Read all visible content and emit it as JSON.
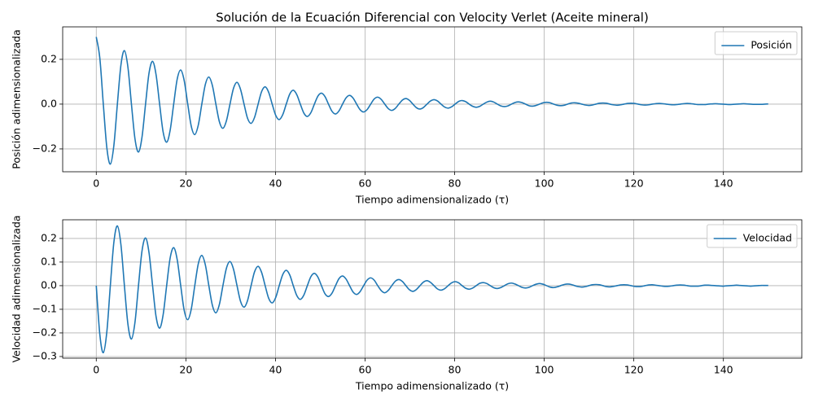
{
  "chart_data": [
    {
      "type": "line",
      "title": "Solución de la Ecuación Diferencial con Velocity Verlet (Aceite mineral)",
      "xlabel": "Tiempo adimensionalizado (τ)",
      "ylabel": "Posición adimensionalizada",
      "grid": true,
      "legend": "upper right",
      "xlim": [
        -7.5,
        157.5
      ],
      "xticks": [
        0,
        20,
        40,
        60,
        80,
        100,
        120,
        140
      ],
      "ylim": [
        -0.302,
        0.345
      ],
      "yticks": [
        {
          "value": -0.2,
          "label": "−0.2"
        },
        {
          "value": 0,
          "label": "0.0"
        },
        0.2
      ],
      "x": [
        0,
        0.79,
        1.57,
        2.36,
        3.14,
        3.93,
        4.71,
        5.5,
        6.28,
        7.07,
        7.85,
        8.64,
        9.42,
        10.21,
        11.0,
        11.78,
        12.57,
        13.35,
        14.14,
        14.92,
        15.71,
        16.49,
        17.28,
        18.06,
        18.85,
        19.63,
        20.42,
        21.21,
        21.99,
        22.78,
        23.56,
        24.35,
        25.13,
        25.92,
        26.7,
        27.49,
        28.27,
        29.06,
        29.85,
        30.63,
        31.42,
        32.2,
        32.99,
        33.77,
        34.56,
        35.34,
        36.13,
        36.91,
        37.7,
        38.48,
        39.27,
        40.06,
        40.84,
        41.63,
        42.41,
        43.2,
        43.98,
        44.77,
        45.55,
        46.34,
        47.12,
        47.91,
        48.69,
        49.48,
        50.27,
        51.05,
        51.84,
        52.62,
        53.41,
        54.19,
        54.98,
        55.76,
        56.55,
        57.33,
        58.12,
        58.9,
        59.69,
        60.48,
        61.26,
        62.05,
        62.83,
        63.62,
        64.4,
        65.19,
        65.97,
        66.76,
        67.54,
        68.33,
        69.12,
        69.9,
        70.69,
        71.47,
        72.26,
        73.04,
        73.83,
        74.61,
        75.4,
        76.18,
        76.97,
        77.75,
        78.54,
        79.33,
        80.11,
        80.9,
        81.68,
        82.47,
        83.25,
        84.04,
        84.82,
        85.61,
        86.39,
        87.18,
        87.96,
        88.75,
        89.54,
        90.32,
        91.11,
        91.89,
        92.68,
        93.46,
        94.25,
        95.03,
        95.82,
        96.6,
        97.39,
        98.17,
        98.96,
        99.75,
        100.53,
        101.32,
        102.1,
        102.89,
        103.67,
        104.46,
        105.24,
        106.03,
        106.81,
        107.6,
        108.38,
        109.17,
        109.96,
        110.74,
        111.53,
        112.31,
        113.1,
        113.88,
        114.67,
        115.45,
        116.24,
        117.02,
        117.81,
        118.6,
        119.38,
        120.17,
        120.95,
        121.74,
        122.52,
        123.31,
        124.09,
        124.88,
        125.66,
        126.45,
        127.23,
        128.02,
        128.81,
        129.59,
        130.38,
        131.16,
        131.95,
        132.73,
        133.52,
        134.3,
        135.09,
        135.87,
        136.66,
        137.44,
        138.23,
        139.02,
        139.8,
        140.59,
        141.37,
        142.16,
        142.94,
        143.73,
        144.51,
        145.3,
        146.08,
        146.87,
        147.65,
        148.44,
        149.23,
        150.01
      ],
      "series": [
        {
          "name": "Posición",
          "color": "#1f77b4",
          "values": [
            0.3,
            0.206,
            0,
            -0.195,
            -0.268,
            -0.184,
            0,
            0.174,
            0.239,
            0.164,
            0,
            -0.155,
            -0.214,
            -0.147,
            0,
            0.139,
            0.191,
            0.131,
            0,
            -0.124,
            -0.17,
            -0.117,
            0,
            0.111,
            0.152,
            0.105,
            0,
            -0.099,
            -0.136,
            -0.093,
            0,
            0.088,
            0.121,
            0.083,
            0,
            -0.079,
            -0.108,
            -0.074,
            0,
            0.07,
            0.097,
            0.066,
            0,
            -0.063,
            -0.086,
            -0.059,
            0,
            0.056,
            0.077,
            0.053,
            0,
            -0.05,
            -0.069,
            -0.047,
            0,
            0.045,
            0.062,
            0.042,
            0,
            -0.04,
            -0.055,
            -0.038,
            0,
            0.036,
            0.049,
            0.034,
            0,
            -0.032,
            -0.044,
            -0.03,
            0,
            0.028,
            0.039,
            0.027,
            0,
            -0.025,
            -0.035,
            -0.024,
            0,
            0.023,
            0.031,
            0.021,
            0,
            -0.02,
            -0.028,
            -0.019,
            0,
            0.018,
            0.025,
            0.017,
            0,
            -0.016,
            -0.022,
            -0.015,
            0,
            0.014,
            0.02,
            0.014,
            0,
            -0.013,
            -0.018,
            -0.012,
            0,
            0.012,
            0.016,
            0.011,
            0,
            -0.01,
            -0.014,
            -0.01,
            0,
            0.009,
            0.013,
            0.009,
            0,
            -0.008,
            -0.011,
            -0.008,
            0,
            0.007,
            0.01,
            0.007,
            0,
            -0.007,
            -0.009,
            -0.006,
            0,
            0.006,
            0.008,
            0.006,
            0,
            -0.005,
            -0.007,
            -0.005,
            0,
            0.005,
            0.006,
            0.004,
            0,
            -0.004,
            -0.006,
            -0.004,
            0,
            0.004,
            0.005,
            0.004,
            0,
            -0.003,
            -0.005,
            -0.003,
            0,
            0.003,
            0.004,
            0.003,
            0,
            -0.003,
            -0.004,
            -0.003,
            0,
            0.002,
            0.003,
            0.002,
            0,
            -0.002,
            -0.003,
            -0.002,
            0,
            0.002,
            0.003,
            0.002,
            0,
            -0.002,
            -0.002,
            -0.002,
            0,
            0.001,
            0.002,
            0.001,
            0,
            -0.001,
            -0.002,
            -0.001,
            0,
            0.001,
            0.002,
            0.001,
            0,
            -0.001,
            -0.001,
            -0.001,
            0,
            0.001
          ]
        }
      ]
    },
    {
      "type": "line",
      "xlabel": "Tiempo adimensionalizado (τ)",
      "ylabel": "Velocidad adimensionalizada",
      "grid": true,
      "legend": "upper right",
      "xlim": [
        -7.5,
        157.5
      ],
      "xticks": [
        0,
        20,
        40,
        60,
        80,
        100,
        120,
        140
      ],
      "ylim": [
        -0.307,
        0.279
      ],
      "yticks": [
        {
          "value": -0.3,
          "label": "−0.3"
        },
        {
          "value": -0.2,
          "label": "−0.2"
        },
        {
          "value": -0.1,
          "label": "−0.1"
        },
        {
          "value": 0,
          "label": "0.0"
        },
        0.1,
        0.2
      ],
      "x": [
        0,
        0.79,
        1.57,
        2.36,
        3.14,
        3.93,
        4.71,
        5.5,
        6.28,
        7.07,
        7.85,
        8.64,
        9.42,
        10.21,
        11.0,
        11.78,
        12.57,
        13.35,
        14.14,
        14.92,
        15.71,
        16.49,
        17.28,
        18.06,
        18.85,
        19.63,
        20.42,
        21.21,
        21.99,
        22.78,
        23.56,
        24.35,
        25.13,
        25.92,
        26.7,
        27.49,
        28.27,
        29.06,
        29.85,
        30.63,
        31.42,
        32.2,
        32.99,
        33.77,
        34.56,
        35.34,
        36.13,
        36.91,
        37.7,
        38.48,
        39.27,
        40.06,
        40.84,
        41.63,
        42.41,
        43.2,
        43.98,
        44.77,
        45.55,
        46.34,
        47.12,
        47.91,
        48.69,
        49.48,
        50.27,
        51.05,
        51.84,
        52.62,
        53.41,
        54.19,
        54.98,
        55.76,
        56.55,
        57.33,
        58.12,
        58.9,
        59.69,
        60.48,
        61.26,
        62.05,
        62.83,
        63.62,
        64.4,
        65.19,
        65.97,
        66.76,
        67.54,
        68.33,
        69.12,
        69.9,
        70.69,
        71.47,
        72.26,
        73.04,
        73.83,
        74.61,
        75.4,
        76.18,
        76.97,
        77.75,
        78.54,
        79.33,
        80.11,
        80.9,
        81.68,
        82.47,
        83.25,
        84.04,
        84.82,
        85.61,
        86.39,
        87.18,
        87.96,
        88.75,
        89.54,
        90.32,
        91.11,
        91.89,
        92.68,
        93.46,
        94.25,
        95.03,
        95.82,
        96.6,
        97.39,
        98.17,
        98.96,
        99.75,
        100.53,
        101.32,
        102.1,
        102.89,
        103.67,
        104.46,
        105.24,
        106.03,
        106.81,
        107.6,
        108.38,
        109.17,
        109.96,
        110.74,
        111.53,
        112.31,
        113.1,
        113.88,
        114.67,
        115.45,
        116.24,
        117.02,
        117.81,
        118.6,
        119.38,
        120.17,
        120.95,
        121.74,
        122.52,
        123.31,
        124.09,
        124.88,
        125.66,
        126.45,
        127.23,
        128.02,
        128.81,
        129.59,
        130.38,
        131.16,
        131.95,
        132.73,
        133.52,
        134.3,
        135.09,
        135.87,
        136.66,
        137.44,
        138.23,
        139.02,
        139.8,
        140.59,
        141.37,
        142.16,
        142.94,
        143.73,
        144.51,
        145.3,
        146.08,
        146.87,
        147.65,
        148.44,
        149.23,
        150.01
      ],
      "series": [
        {
          "name": "Velocidad",
          "color": "#1f77b4",
          "values": [
            0,
            -0.206,
            -0.284,
            -0.195,
            0,
            0.184,
            0.253,
            0.174,
            0,
            -0.164,
            -0.226,
            -0.155,
            0,
            0.147,
            0.202,
            0.139,
            0,
            -0.131,
            -0.18,
            -0.124,
            0,
            0.117,
            0.161,
            0.111,
            0,
            -0.105,
            -0.144,
            -0.099,
            0,
            0.093,
            0.128,
            0.088,
            0,
            -0.083,
            -0.115,
            -0.079,
            0,
            0.074,
            0.102,
            0.07,
            0,
            -0.066,
            -0.091,
            -0.063,
            0,
            0.059,
            0.082,
            0.056,
            0,
            -0.053,
            -0.073,
            -0.05,
            0,
            0.047,
            0.065,
            0.045,
            0,
            -0.042,
            -0.058,
            -0.04,
            0,
            0.038,
            0.052,
            0.036,
            0,
            -0.034,
            -0.046,
            -0.032,
            0,
            0.03,
            0.041,
            0.028,
            0,
            -0.027,
            -0.037,
            -0.025,
            0,
            0.024,
            0.033,
            0.023,
            0,
            -0.021,
            -0.03,
            -0.02,
            0,
            0.019,
            0.026,
            0.018,
            0,
            -0.017,
            -0.024,
            -0.016,
            0,
            0.015,
            0.021,
            0.014,
            0,
            -0.014,
            -0.019,
            -0.013,
            0,
            0.012,
            0.017,
            0.012,
            0,
            -0.011,
            -0.015,
            -0.01,
            0,
            0.01,
            0.013,
            0.009,
            0,
            -0.009,
            -0.012,
            -0.008,
            0,
            0.008,
            0.011,
            0.007,
            0,
            -0.007,
            -0.01,
            -0.007,
            0,
            0.006,
            0.009,
            0.006,
            0,
            -0.006,
            -0.008,
            -0.005,
            0,
            0.005,
            0.007,
            0.005,
            0,
            -0.004,
            -0.006,
            -0.004,
            0,
            0.004,
            0.005,
            0.004,
            0,
            -0.004,
            -0.005,
            -0.003,
            0,
            0.003,
            0.004,
            0.003,
            0,
            -0.003,
            -0.004,
            -0.003,
            0,
            0.003,
            0.004,
            0.002,
            0,
            -0.002,
            -0.003,
            -0.002,
            0,
            0.002,
            0.003,
            0.002,
            0,
            -0.002,
            -0.002,
            -0.002,
            0,
            0.002,
            0.002,
            0.001,
            0,
            -0.001,
            -0.002,
            -0.001,
            0,
            0.001,
            0.002,
            0.001,
            0,
            -0.001,
            -0.002,
            -0.001,
            0,
            0.001,
            0.001,
            0.001
          ]
        }
      ]
    }
  ]
}
